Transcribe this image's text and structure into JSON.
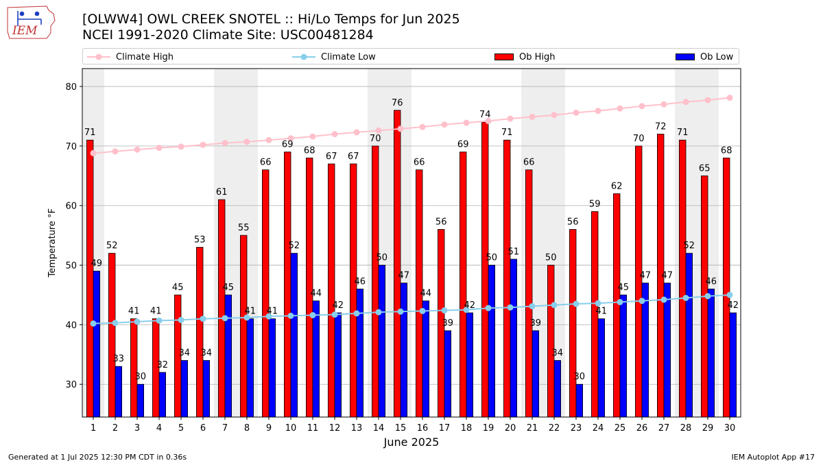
{
  "header": {
    "title_line1": "[OLWW4] OWL CREEK SNOTEL :: Hi/Lo Temps for Jun 2025",
    "title_line2": "NCEI 1991-2020 Climate Site: USC00481284",
    "logo_text": "IEM"
  },
  "legend": {
    "climate_high": "Climate High",
    "climate_low": "Climate Low",
    "ob_high": "Ob High",
    "ob_low": "Ob Low"
  },
  "footer": {
    "generated": "Generated at 1 Jul 2025 12:30 PM CDT in 0.36s",
    "app": "IEM Autoplot App #17"
  },
  "colors": {
    "ob_high": "#ff0000",
    "ob_low": "#0000ff",
    "climate_high": "#ffc0cb",
    "climate_low": "#87ceeb",
    "weekend_shade": "#eeeeee",
    "grid": "#b0b0b0"
  },
  "chart_data": {
    "type": "bar",
    "title": "[OLWW4] OWL CREEK SNOTEL :: Hi/Lo Temps for Jun 2025",
    "subtitle": "NCEI 1991-2020 Climate Site: USC00481284",
    "xlabel": "June 2025",
    "ylabel": "Temperature °F",
    "ylim": [
      24.5,
      83
    ],
    "yticks": [
      30,
      40,
      50,
      60,
      70,
      80
    ],
    "grid": true,
    "legend_position": "top",
    "categories": [
      "1",
      "2",
      "3",
      "4",
      "5",
      "6",
      "7",
      "8",
      "9",
      "10",
      "11",
      "12",
      "13",
      "14",
      "15",
      "16",
      "17",
      "18",
      "19",
      "20",
      "21",
      "22",
      "23",
      "24",
      "25",
      "26",
      "27",
      "28",
      "29",
      "30"
    ],
    "weekend_days": [
      1,
      7,
      8,
      14,
      15,
      21,
      22,
      28,
      29
    ],
    "series": [
      {
        "name": "Ob High",
        "kind": "bar",
        "values": [
          71,
          52,
          41,
          41,
          45,
          53,
          61,
          55,
          66,
          69,
          68,
          67,
          67,
          70,
          76,
          66,
          56,
          69,
          74,
          71,
          66,
          50,
          56,
          59,
          62,
          70,
          72,
          71,
          65,
          68
        ]
      },
      {
        "name": "Ob Low",
        "kind": "bar",
        "values": [
          49,
          33,
          30,
          32,
          34,
          34,
          45,
          41,
          41,
          52,
          44,
          42,
          46,
          50,
          47,
          44,
          39,
          42,
          50,
          51,
          39,
          34,
          30,
          41,
          45,
          47,
          47,
          52,
          46,
          42
        ]
      },
      {
        "name": "Climate High",
        "kind": "line",
        "values": [
          68.8,
          69.1,
          69.4,
          69.7,
          69.9,
          70.2,
          70.5,
          70.7,
          71.0,
          71.3,
          71.6,
          72.0,
          72.3,
          72.6,
          72.9,
          73.2,
          73.6,
          73.9,
          74.2,
          74.6,
          74.9,
          75.2,
          75.6,
          75.9,
          76.3,
          76.7,
          77.0,
          77.4,
          77.7,
          78.1
        ]
      },
      {
        "name": "Climate Low",
        "kind": "line",
        "values": [
          40.2,
          40.3,
          40.5,
          40.7,
          40.8,
          41.0,
          41.1,
          41.2,
          41.4,
          41.5,
          41.6,
          41.7,
          41.9,
          42.1,
          42.2,
          42.3,
          42.4,
          42.5,
          42.8,
          42.9,
          43.1,
          43.3,
          43.5,
          43.6,
          43.8,
          44.0,
          44.2,
          44.5,
          44.8,
          45.0
        ]
      }
    ]
  }
}
